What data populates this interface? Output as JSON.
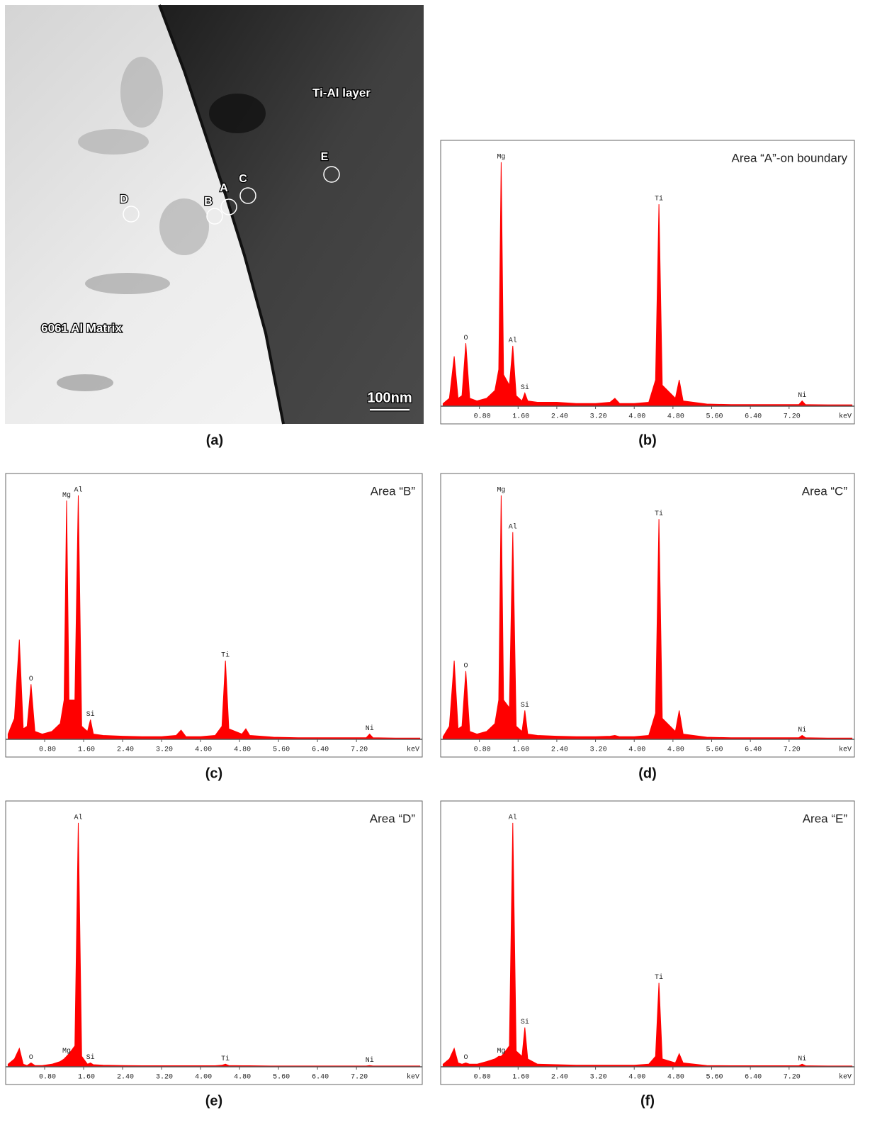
{
  "image": {
    "panel": "(a)",
    "layer": "Ti-Al layer",
    "matrix": "6061 Al Matrix",
    "scale": "100nm",
    "markers": [
      "A",
      "B",
      "C",
      "D",
      "E"
    ]
  },
  "chart_data": [
    {
      "type": "area",
      "title": "Area “A”-on boundary",
      "panel": "(b)",
      "x_label": "keV",
      "color": "#ff0000",
      "xlim": [
        0,
        8.55
      ],
      "ylim": [
        0,
        100
      ],
      "xticks": [
        {
          "value": 0.8,
          "label": "0.80"
        },
        {
          "value": 1.6,
          "label": "1.60"
        },
        {
          "value": 2.4,
          "label": "2.40"
        },
        {
          "value": 3.2,
          "label": "3.20"
        },
        {
          "value": 4,
          "label": "4.00"
        },
        {
          "value": 4.8,
          "label": "4.80"
        },
        {
          "value": 5.6,
          "label": "5.60"
        },
        {
          "value": 6.4,
          "label": "6.40"
        },
        {
          "value": 7.2,
          "label": "7.20"
        }
      ],
      "x": [
        0.05,
        0.18,
        0.28,
        0.36,
        0.44,
        0.52,
        0.6,
        0.75,
        0.95,
        1.12,
        1.2,
        1.25,
        1.3,
        1.42,
        1.49,
        1.56,
        1.68,
        1.74,
        1.8,
        2.0,
        2.4,
        2.8,
        3.2,
        3.5,
        3.6,
        3.7,
        4.0,
        4.3,
        4.44,
        4.51,
        4.58,
        4.85,
        4.93,
        5.01,
        5.5,
        6.0,
        6.5,
        7.0,
        7.4,
        7.47,
        7.54,
        8.0,
        8.5
      ],
      "values": [
        1,
        3,
        19,
        3,
        4,
        24,
        3,
        2,
        3,
        6,
        14,
        93,
        12,
        8,
        23,
        4,
        2,
        5,
        2,
        1.5,
        1.5,
        1,
        1,
        1.5,
        3,
        1,
        1,
        1.5,
        10,
        77,
        8,
        3,
        10,
        2,
        0.8,
        0.6,
        0.6,
        0.6,
        0.6,
        2,
        0.6,
        0.5,
        0.5
      ],
      "annotations": [
        {
          "text": "O",
          "x": 0.52,
          "y": 24
        },
        {
          "text": "Mg",
          "x": 1.25,
          "y": 93
        },
        {
          "text": "Al",
          "x": 1.49,
          "y": 23
        },
        {
          "text": "Si",
          "x": 1.74,
          "y": 5
        },
        {
          "text": "Ti",
          "x": 4.51,
          "y": 77
        },
        {
          "text": "Ni",
          "x": 7.47,
          "y": 2
        }
      ]
    },
    {
      "type": "area",
      "title": "Area “B”",
      "panel": "(c)",
      "x_label": "keV",
      "color": "#ff0000",
      "xlim": [
        0,
        8.55
      ],
      "ylim": [
        0,
        100
      ],
      "xticks": [
        {
          "value": 0.8,
          "label": "0.80"
        },
        {
          "value": 1.6,
          "label": "1.60"
        },
        {
          "value": 2.4,
          "label": "2.40"
        },
        {
          "value": 3.2,
          "label": "3.20"
        },
        {
          "value": 4,
          "label": "4.00"
        },
        {
          "value": 4.8,
          "label": "4.80"
        },
        {
          "value": 5.6,
          "label": "5.60"
        },
        {
          "value": 6.4,
          "label": "6.40"
        },
        {
          "value": 7.2,
          "label": "7.20"
        }
      ],
      "x": [
        0.05,
        0.18,
        0.28,
        0.36,
        0.44,
        0.52,
        0.6,
        0.75,
        0.95,
        1.12,
        1.2,
        1.25,
        1.3,
        1.42,
        1.49,
        1.56,
        1.68,
        1.74,
        1.8,
        2.0,
        2.4,
        2.8,
        3.2,
        3.5,
        3.6,
        3.7,
        4.0,
        4.3,
        4.44,
        4.51,
        4.58,
        4.85,
        4.93,
        5.01,
        5.5,
        6.0,
        6.5,
        7.0,
        7.4,
        7.47,
        7.54,
        8.0,
        8.5
      ],
      "values": [
        2,
        8,
        38,
        4,
        5,
        21,
        3,
        2,
        3,
        6,
        15,
        91,
        15,
        15,
        93,
        5,
        3,
        7.5,
        2,
        1.5,
        1.2,
        1,
        1,
        1.5,
        3.5,
        1,
        1,
        1.5,
        5,
        30,
        4,
        2,
        4,
        1.5,
        0.8,
        0.6,
        0.6,
        0.6,
        0.6,
        2,
        0.6,
        0.5,
        0.5
      ],
      "annotations": [
        {
          "text": "O",
          "x": 0.52,
          "y": 21
        },
        {
          "text": "Mg",
          "x": 1.25,
          "y": 91
        },
        {
          "text": "Al",
          "x": 1.49,
          "y": 93
        },
        {
          "text": "Si",
          "x": 1.74,
          "y": 7.5
        },
        {
          "text": "Ti",
          "x": 4.51,
          "y": 30
        },
        {
          "text": "Ni",
          "x": 7.47,
          "y": 2
        }
      ]
    },
    {
      "type": "area",
      "title": "Area “C”",
      "panel": "(d)",
      "x_label": "keV",
      "color": "#ff0000",
      "xlim": [
        0,
        8.55
      ],
      "ylim": [
        0,
        100
      ],
      "xticks": [
        {
          "value": 0.8,
          "label": "0.80"
        },
        {
          "value": 1.6,
          "label": "1.60"
        },
        {
          "value": 2.4,
          "label": "2.40"
        },
        {
          "value": 3.2,
          "label": "3.20"
        },
        {
          "value": 4,
          "label": "4.00"
        },
        {
          "value": 4.8,
          "label": "4.80"
        },
        {
          "value": 5.6,
          "label": "5.60"
        },
        {
          "value": 6.4,
          "label": "6.40"
        },
        {
          "value": 7.2,
          "label": "7.20"
        }
      ],
      "x": [
        0.05,
        0.18,
        0.28,
        0.36,
        0.44,
        0.52,
        0.6,
        0.75,
        0.95,
        1.12,
        1.2,
        1.25,
        1.3,
        1.42,
        1.49,
        1.56,
        1.68,
        1.74,
        1.8,
        2.0,
        2.4,
        2.8,
        3.2,
        3.5,
        3.6,
        3.7,
        4.0,
        4.3,
        4.44,
        4.51,
        4.58,
        4.85,
        4.93,
        5.01,
        5.5,
        6.0,
        6.5,
        7.0,
        7.4,
        7.47,
        7.54,
        8.0,
        8.5
      ],
      "values": [
        1,
        5,
        30,
        4,
        5,
        26,
        3,
        2,
        3,
        6,
        15,
        93,
        15,
        12,
        79,
        5,
        3,
        11,
        2,
        1.5,
        1.2,
        1,
        1,
        1.2,
        1.5,
        1,
        1,
        1.5,
        10,
        84,
        8,
        3,
        11,
        2,
        0.8,
        0.6,
        0.6,
        0.6,
        0.6,
        1.5,
        0.6,
        0.5,
        0.5
      ],
      "annotations": [
        {
          "text": "O",
          "x": 0.52,
          "y": 26
        },
        {
          "text": "Mg",
          "x": 1.25,
          "y": 93
        },
        {
          "text": "Al",
          "x": 1.49,
          "y": 79
        },
        {
          "text": "Si",
          "x": 1.74,
          "y": 11
        },
        {
          "text": "Ti",
          "x": 4.51,
          "y": 84
        },
        {
          "text": "Ni",
          "x": 7.47,
          "y": 1.5
        }
      ]
    },
    {
      "type": "area",
      "title": "Area “D”",
      "panel": "(e)",
      "x_label": "keV",
      "color": "#ff0000",
      "xlim": [
        0,
        8.55
      ],
      "ylim": [
        0,
        100
      ],
      "xticks": [
        {
          "value": 0.8,
          "label": "0.80"
        },
        {
          "value": 1.6,
          "label": "1.60"
        },
        {
          "value": 2.4,
          "label": "2.40"
        },
        {
          "value": 3.2,
          "label": "3.20"
        },
        {
          "value": 4,
          "label": "4.00"
        },
        {
          "value": 4.8,
          "label": "4.80"
        },
        {
          "value": 5.6,
          "label": "5.60"
        },
        {
          "value": 6.4,
          "label": "6.40"
        },
        {
          "value": 7.2,
          "label": "7.20"
        }
      ],
      "x": [
        0.05,
        0.18,
        0.28,
        0.36,
        0.44,
        0.52,
        0.6,
        0.75,
        0.95,
        1.12,
        1.2,
        1.25,
        1.3,
        1.42,
        1.49,
        1.56,
        1.68,
        1.74,
        1.8,
        2.0,
        2.4,
        2.8,
        3.2,
        3.5,
        3.6,
        3.7,
        4.0,
        4.3,
        4.44,
        4.51,
        4.58,
        4.85,
        4.93,
        5.01,
        5.5,
        6.0,
        6.5,
        7.0,
        7.4,
        7.47,
        7.54,
        8.0,
        8.5
      ],
      "values": [
        1,
        3,
        7,
        1,
        0.5,
        1.5,
        0.5,
        0.5,
        1,
        2,
        3,
        4,
        5,
        8,
        93,
        4,
        1,
        1.5,
        0.8,
        0.6,
        0.5,
        0.4,
        0.4,
        0.4,
        0.4,
        0.4,
        0.4,
        0.4,
        0.6,
        1,
        0.5,
        0.4,
        0.4,
        0.4,
        0.3,
        0.3,
        0.3,
        0.3,
        0.3,
        0.5,
        0.3,
        0.3,
        0.3
      ],
      "annotations": [
        {
          "text": "O",
          "x": 0.52,
          "y": 1.5
        },
        {
          "text": "Mg",
          "x": 1.25,
          "y": 4
        },
        {
          "text": "Al",
          "x": 1.49,
          "y": 93
        },
        {
          "text": "Si",
          "x": 1.74,
          "y": 1.5
        },
        {
          "text": "Ti",
          "x": 4.51,
          "y": 1
        },
        {
          "text": "Ni",
          "x": 7.47,
          "y": 0.5
        }
      ]
    },
    {
      "type": "area",
      "title": "Area “E”",
      "panel": "(f)",
      "x_label": "keV",
      "color": "#ff0000",
      "xlim": [
        0,
        8.55
      ],
      "ylim": [
        0,
        100
      ],
      "xticks": [
        {
          "value": 0.8,
          "label": "0.80"
        },
        {
          "value": 1.6,
          "label": "1.60"
        },
        {
          "value": 2.4,
          "label": "2.40"
        },
        {
          "value": 3.2,
          "label": "3.20"
        },
        {
          "value": 4,
          "label": "4.00"
        },
        {
          "value": 4.8,
          "label": "4.80"
        },
        {
          "value": 5.6,
          "label": "5.60"
        },
        {
          "value": 6.4,
          "label": "6.40"
        },
        {
          "value": 7.2,
          "label": "7.20"
        }
      ],
      "x": [
        0.05,
        0.18,
        0.28,
        0.36,
        0.44,
        0.52,
        0.6,
        0.75,
        0.95,
        1.12,
        1.2,
        1.25,
        1.3,
        1.42,
        1.49,
        1.56,
        1.68,
        1.74,
        1.8,
        2.0,
        2.4,
        2.8,
        3.2,
        3.5,
        3.6,
        3.7,
        4.0,
        4.3,
        4.44,
        4.51,
        4.58,
        4.85,
        4.93,
        5.01,
        5.5,
        6.0,
        6.5,
        7.0,
        7.4,
        7.47,
        7.54,
        8.0,
        8.5
      ],
      "values": [
        1,
        3,
        7,
        1.5,
        1,
        1.5,
        1,
        1,
        2,
        3,
        4,
        4,
        5,
        8,
        93,
        6,
        4,
        15,
        3,
        1,
        0.8,
        0.6,
        0.6,
        0.6,
        0.6,
        0.6,
        0.6,
        1,
        4,
        32,
        3,
        1.5,
        5,
        1.5,
        0.5,
        0.4,
        0.4,
        0.4,
        0.4,
        1,
        0.4,
        0.3,
        0.3
      ],
      "annotations": [
        {
          "text": "O",
          "x": 0.52,
          "y": 1.5
        },
        {
          "text": "Mg",
          "x": 1.25,
          "y": 4
        },
        {
          "text": "Al",
          "x": 1.49,
          "y": 93
        },
        {
          "text": "Si",
          "x": 1.74,
          "y": 15
        },
        {
          "text": "Ti",
          "x": 4.51,
          "y": 32
        },
        {
          "text": "Ni",
          "x": 7.47,
          "y": 1
        }
      ]
    }
  ]
}
